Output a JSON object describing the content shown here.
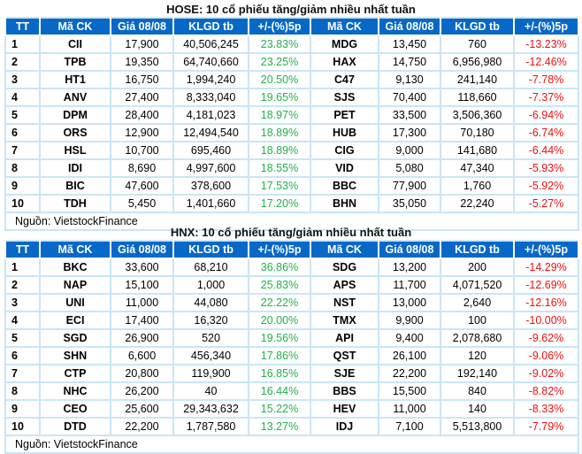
{
  "colors": {
    "header_bg": "#0868c8",
    "border": "#c9e6f7",
    "up": "#22b14c",
    "down": "#ee1111"
  },
  "headers": [
    "TT",
    "Mã CK",
    "Giá 08/08",
    "KLGD tb",
    "+/-(%)5p",
    "Mã CK",
    "Giá 08/08",
    "KLGD tb",
    "+/-(%)5p"
  ],
  "tables": [
    {
      "title": "HOSE: 10 cổ phiếu tăng/giảm nhiều nhất tuần",
      "source": "Nguồn: VietstockFinance",
      "rows": [
        [
          "1",
          "CII",
          "17,900",
          "40,506,245",
          "23.83%",
          "MDG",
          "13,450",
          "760",
          "-13.23%"
        ],
        [
          "2",
          "TPB",
          "19,350",
          "64,740,660",
          "23.25%",
          "HAX",
          "14,750",
          "6,956,980",
          "-12.46%"
        ],
        [
          "3",
          "HT1",
          "16,750",
          "1,994,240",
          "20.50%",
          "C47",
          "9,130",
          "241,140",
          "-7.78%"
        ],
        [
          "4",
          "ANV",
          "27,400",
          "8,333,040",
          "19.65%",
          "SJS",
          "70,400",
          "118,660",
          "-7.37%"
        ],
        [
          "5",
          "DPM",
          "28,400",
          "4,181,023",
          "18.97%",
          "PET",
          "33,500",
          "3,506,360",
          "-6.94%"
        ],
        [
          "6",
          "ORS",
          "12,900",
          "12,494,540",
          "18.89%",
          "HUB",
          "17,300",
          "70,180",
          "-6.74%"
        ],
        [
          "7",
          "HSL",
          "10,700",
          "695,460",
          "18.89%",
          "CIG",
          "9,000",
          "141,680",
          "-6.44%"
        ],
        [
          "8",
          "IDI",
          "8,690",
          "4,997,600",
          "18.55%",
          "VID",
          "5,080",
          "47,340",
          "-5.93%"
        ],
        [
          "9",
          "BIC",
          "47,600",
          "378,600",
          "17.53%",
          "BBC",
          "77,900",
          "1,760",
          "-5.92%"
        ],
        [
          "10",
          "TDH",
          "5,450",
          "1,401,660",
          "17.20%",
          "BHN",
          "35,050",
          "22,240",
          "-5.27%"
        ]
      ]
    },
    {
      "title": "HNX: 10 cổ phiếu tăng/giảm nhiều nhất tuần",
      "source": "Nguồn: VietstockFinance",
      "rows": [
        [
          "1",
          "BKC",
          "33,600",
          "68,210",
          "36.86%",
          "SDG",
          "13,200",
          "200",
          "-14.29%"
        ],
        [
          "2",
          "NAP",
          "15,100",
          "1,000",
          "25.83%",
          "APS",
          "11,700",
          "4,071,520",
          "-12.69%"
        ],
        [
          "3",
          "UNI",
          "11,000",
          "44,080",
          "22.22%",
          "NST",
          "13,000",
          "2,640",
          "-12.16%"
        ],
        [
          "4",
          "ECI",
          "17,400",
          "16,320",
          "20.00%",
          "TMX",
          "9,900",
          "100",
          "-10.00%"
        ],
        [
          "5",
          "SGD",
          "26,900",
          "520",
          "19.56%",
          "API",
          "9,400",
          "2,078,680",
          "-9.62%"
        ],
        [
          "6",
          "SHN",
          "6,600",
          "456,340",
          "17.86%",
          "QST",
          "26,100",
          "120",
          "-9.06%"
        ],
        [
          "7",
          "CTP",
          "20,800",
          "119,900",
          "16.85%",
          "SJE",
          "22,200",
          "192,140",
          "-9.02%"
        ],
        [
          "8",
          "NHC",
          "26,200",
          "40",
          "16.44%",
          "BBS",
          "15,500",
          "840",
          "-8.82%"
        ],
        [
          "9",
          "CEO",
          "25,600",
          "29,343,632",
          "15.22%",
          "HEV",
          "11,000",
          "140",
          "-8.33%"
        ],
        [
          "10",
          "DTD",
          "22,200",
          "1,787,580",
          "13.27%",
          "IDJ",
          "7,100",
          "5,513,800",
          "-7.79%"
        ]
      ]
    }
  ]
}
